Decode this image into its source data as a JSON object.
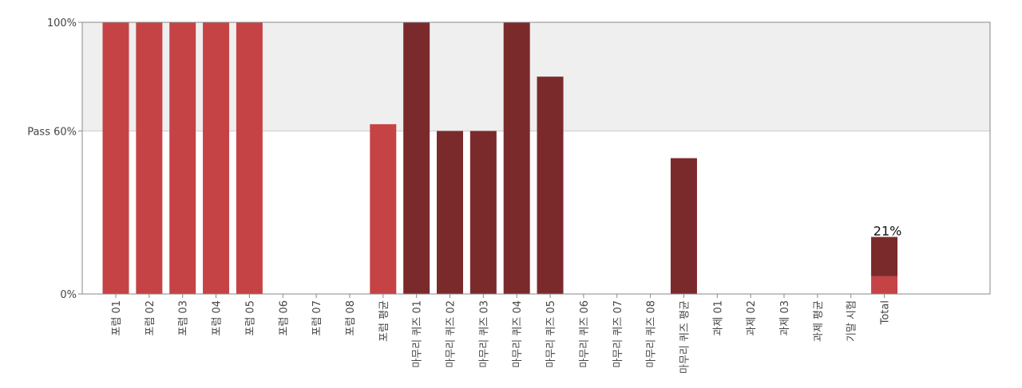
{
  "chart_data": {
    "type": "bar",
    "ylim": [
      0,
      100
    ],
    "pass_threshold": 60,
    "y_ticks": [
      {
        "value": 100,
        "label": "100%"
      },
      {
        "value": 60,
        "label": "Pass 60%"
      },
      {
        "value": 0,
        "label": "0%"
      }
    ],
    "categories": [
      {
        "label": "포럼 01",
        "value": 100,
        "kind": "forum"
      },
      {
        "label": "포럼 02",
        "value": 100,
        "kind": "forum"
      },
      {
        "label": "포럼 03",
        "value": 100,
        "kind": "forum"
      },
      {
        "label": "포럼 04",
        "value": 100,
        "kind": "forum"
      },
      {
        "label": "포럼 05",
        "value": 100,
        "kind": "forum"
      },
      {
        "label": "포럼 06",
        "value": 0,
        "kind": "forum"
      },
      {
        "label": "포럼 07",
        "value": 0,
        "kind": "forum"
      },
      {
        "label": "포럼 08",
        "value": 0,
        "kind": "forum"
      },
      {
        "label": "포럼 평균",
        "value": 62.5,
        "kind": "forum"
      },
      {
        "label": "마무리 퀴즈 01",
        "value": 100,
        "kind": "quiz"
      },
      {
        "label": "마무리 퀴즈 02",
        "value": 60,
        "kind": "quiz"
      },
      {
        "label": "마무리 퀴즈 03",
        "value": 60,
        "kind": "quiz"
      },
      {
        "label": "마무리 퀴즈 04",
        "value": 100,
        "kind": "quiz"
      },
      {
        "label": "마무리 퀴즈 05",
        "value": 80,
        "kind": "quiz"
      },
      {
        "label": "마무리 퀴즈 06",
        "value": 0,
        "kind": "quiz"
      },
      {
        "label": "마무리 퀴즈 07",
        "value": 0,
        "kind": "quiz"
      },
      {
        "label": "마무리 퀴즈 08",
        "value": 0,
        "kind": "quiz"
      },
      {
        "label": "마무리 퀴즈 평균",
        "value": 50,
        "kind": "quiz"
      },
      {
        "label": "과제 01",
        "value": 0,
        "kind": "assignment"
      },
      {
        "label": "과제 02",
        "value": 0,
        "kind": "assignment"
      },
      {
        "label": "과제 03",
        "value": 0,
        "kind": "assignment"
      },
      {
        "label": "과제 평균",
        "value": 0,
        "kind": "assignment"
      },
      {
        "label": "기말 시험",
        "value": 0,
        "kind": "exam"
      },
      {
        "label": "Total",
        "value": 21,
        "kind": "total",
        "stack": [
          6.5,
          14.5
        ],
        "data_label": "21%"
      }
    ],
    "colors": {
      "forum": "#c64345",
      "quiz": "#7b2a2c",
      "total_bottom": "#c64345",
      "total_top": "#7b2a2c",
      "pass_band": "#efefef"
    }
  }
}
